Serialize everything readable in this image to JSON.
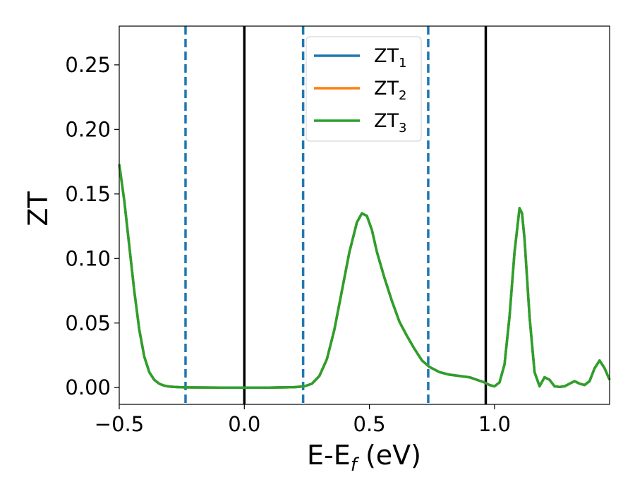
{
  "chart_data": {
    "type": "line",
    "xlabel_main": "E-E",
    "xlabel_sub": "f",
    "xlabel_unit": " (eV)",
    "ylabel": "ZT",
    "xlim": [
      -0.5,
      1.46
    ],
    "ylim": [
      -0.013,
      0.28
    ],
    "x_ticks": [
      -0.5,
      0.0,
      0.5,
      1.0
    ],
    "x_tick_labels": [
      "−0.5",
      "0.0",
      "0.5",
      "1.0"
    ],
    "y_ticks": [
      0.0,
      0.05,
      0.1,
      0.15,
      0.2,
      0.25
    ],
    "y_tick_labels": [
      "0.00",
      "0.05",
      "0.10",
      "0.15",
      "0.20",
      "0.25"
    ],
    "grid": false,
    "legend_position": "top-center",
    "vlines": [
      {
        "x": -0.235,
        "style": "dashed",
        "color": "#1f77b4"
      },
      {
        "x": 0.0,
        "style": "solid",
        "color": "#000000"
      },
      {
        "x": 0.235,
        "style": "dashed",
        "color": "#1f77b4"
      },
      {
        "x": 0.735,
        "style": "dashed",
        "color": "#1f77b4"
      },
      {
        "x": 0.965,
        "style": "solid",
        "color": "#000000"
      }
    ],
    "x": [
      -0.5,
      -0.48,
      -0.46,
      -0.44,
      -0.42,
      -0.4,
      -0.38,
      -0.36,
      -0.34,
      -0.32,
      -0.3,
      -0.28,
      -0.26,
      -0.24,
      -0.2,
      -0.1,
      0.0,
      0.1,
      0.2,
      0.24,
      0.27,
      0.3,
      0.33,
      0.36,
      0.39,
      0.42,
      0.45,
      0.47,
      0.49,
      0.51,
      0.53,
      0.56,
      0.59,
      0.62,
      0.65,
      0.68,
      0.71,
      0.74,
      0.78,
      0.82,
      0.86,
      0.9,
      0.93,
      0.96,
      0.98,
      1.0,
      1.02,
      1.04,
      1.06,
      1.08,
      1.1,
      1.11,
      1.12,
      1.14,
      1.16,
      1.18,
      1.2,
      1.22,
      1.24,
      1.26,
      1.28,
      1.3,
      1.32,
      1.34,
      1.36,
      1.38,
      1.4,
      1.42,
      1.44,
      1.46
    ],
    "series": [
      {
        "name": "ZT",
        "sub": "1",
        "color": "#1f77b4",
        "values": [
          0.173,
          0.145,
          0.11,
          0.075,
          0.045,
          0.024,
          0.012,
          0.006,
          0.003,
          0.0015,
          0.0008,
          0.0005,
          0.0003,
          0.0002,
          0.0001,
          0.0,
          0.0,
          0.0,
          0.0003,
          0.001,
          0.003,
          0.009,
          0.022,
          0.045,
          0.075,
          0.105,
          0.128,
          0.135,
          0.133,
          0.122,
          0.105,
          0.085,
          0.067,
          0.051,
          0.04,
          0.03,
          0.021,
          0.016,
          0.012,
          0.01,
          0.009,
          0.008,
          0.006,
          0.004,
          0.002,
          0.001,
          0.004,
          0.018,
          0.055,
          0.105,
          0.139,
          0.135,
          0.115,
          0.055,
          0.012,
          0.001,
          0.008,
          0.006,
          0.001,
          0.0005,
          0.001,
          0.003,
          0.005,
          0.003,
          0.002,
          0.005,
          0.015,
          0.021,
          0.015,
          0.006
        ]
      },
      {
        "name": "ZT",
        "sub": "2",
        "color": "#ff7f0e",
        "values": [
          0.173,
          0.145,
          0.11,
          0.075,
          0.045,
          0.024,
          0.012,
          0.006,
          0.003,
          0.0015,
          0.0008,
          0.0005,
          0.0003,
          0.0002,
          0.0001,
          0.0,
          0.0,
          0.0,
          0.0003,
          0.001,
          0.003,
          0.009,
          0.022,
          0.045,
          0.075,
          0.105,
          0.128,
          0.135,
          0.133,
          0.122,
          0.105,
          0.085,
          0.067,
          0.051,
          0.04,
          0.03,
          0.021,
          0.016,
          0.012,
          0.01,
          0.009,
          0.008,
          0.006,
          0.004,
          0.002,
          0.001,
          0.004,
          0.018,
          0.055,
          0.105,
          0.139,
          0.135,
          0.115,
          0.055,
          0.012,
          0.001,
          0.008,
          0.006,
          0.001,
          0.0005,
          0.001,
          0.003,
          0.005,
          0.003,
          0.002,
          0.005,
          0.015,
          0.021,
          0.015,
          0.006
        ]
      },
      {
        "name": "ZT",
        "sub": "3",
        "color": "#2ca02c",
        "values": [
          0.173,
          0.145,
          0.11,
          0.075,
          0.045,
          0.024,
          0.012,
          0.006,
          0.003,
          0.0015,
          0.0008,
          0.0005,
          0.0003,
          0.0002,
          0.0001,
          0.0,
          0.0,
          0.0,
          0.0003,
          0.001,
          0.003,
          0.009,
          0.022,
          0.045,
          0.075,
          0.105,
          0.128,
          0.135,
          0.133,
          0.122,
          0.105,
          0.085,
          0.067,
          0.051,
          0.04,
          0.03,
          0.021,
          0.016,
          0.012,
          0.01,
          0.009,
          0.008,
          0.006,
          0.004,
          0.002,
          0.001,
          0.004,
          0.018,
          0.055,
          0.105,
          0.139,
          0.135,
          0.115,
          0.055,
          0.012,
          0.001,
          0.008,
          0.006,
          0.001,
          0.0005,
          0.001,
          0.003,
          0.005,
          0.003,
          0.002,
          0.005,
          0.015,
          0.021,
          0.015,
          0.006
        ]
      }
    ]
  }
}
